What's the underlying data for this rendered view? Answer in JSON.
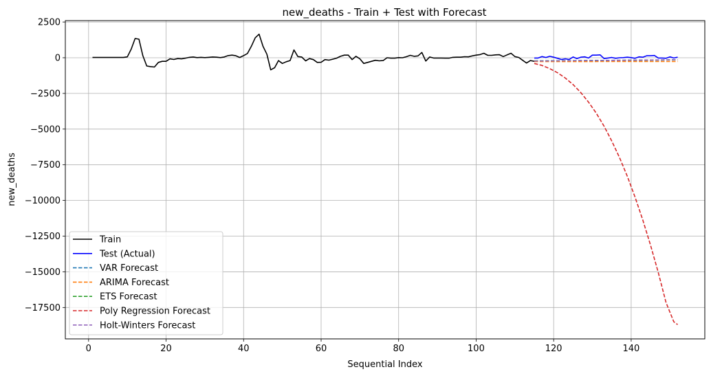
{
  "chart_data": {
    "type": "line",
    "title": "new_deaths - Train + Test with Forecast",
    "xlabel": "Sequential Index",
    "ylabel": "new_deaths",
    "xlim": [
      -6,
      159
    ],
    "ylim": [
      -19700,
      2600
    ],
    "xticks": [
      0,
      20,
      40,
      60,
      80,
      100,
      120,
      140
    ],
    "xtick_labels": [
      "0",
      "20",
      "40",
      "60",
      "80",
      "100",
      "120",
      "140"
    ],
    "yticks": [
      2500,
      0,
      -2500,
      -5000,
      -7500,
      -10000,
      -12500,
      -15000,
      -17500
    ],
    "ytick_labels": [
      "2500",
      "0",
      "−2500",
      "−5000",
      "−7500",
      "−10000",
      "−12500",
      "−15000",
      "−17500"
    ],
    "grid": true,
    "legend_position": "lower-left",
    "series": [
      {
        "name": "Train",
        "color": "#000000",
        "dashed": false,
        "x": [
          1,
          2,
          3,
          4,
          5,
          6,
          7,
          8,
          9,
          10,
          11,
          12,
          13,
          14,
          15,
          16,
          17,
          18,
          19,
          20,
          21,
          22,
          23,
          24,
          25,
          26,
          27,
          28,
          29,
          30,
          31,
          32,
          33,
          34,
          35,
          36,
          37,
          38,
          39,
          40,
          41,
          42,
          43,
          44,
          45,
          46,
          47,
          48,
          49,
          50,
          51,
          52,
          53,
          54,
          55,
          56,
          57,
          58,
          59,
          60,
          61,
          62,
          63,
          64,
          65,
          66,
          67,
          68,
          69,
          70,
          71,
          72,
          73,
          74,
          75,
          76,
          77,
          78,
          79,
          80,
          81,
          82,
          83,
          84,
          85,
          86,
          87,
          88,
          89,
          90,
          91,
          92,
          93,
          94,
          95,
          96,
          97,
          98,
          99,
          100,
          101,
          102,
          103,
          104,
          105,
          106,
          107,
          108,
          109,
          110,
          111,
          112,
          113,
          114
        ],
        "values": [
          20,
          20,
          20,
          20,
          20,
          20,
          20,
          20,
          20,
          60,
          600,
          1350,
          1300,
          150,
          -580,
          -620,
          -650,
          -330,
          -250,
          -250,
          -80,
          -120,
          -60,
          -80,
          -30,
          30,
          50,
          10,
          30,
          10,
          30,
          50,
          40,
          10,
          50,
          150,
          180,
          140,
          20,
          150,
          300,
          800,
          1400,
          1650,
          800,
          250,
          -850,
          -700,
          -200,
          -400,
          -280,
          -200,
          550,
          80,
          50,
          -220,
          -60,
          -130,
          -330,
          -320,
          -130,
          -170,
          -100,
          -30,
          100,
          180,
          180,
          -130,
          100,
          -80,
          -400,
          -330,
          -250,
          -180,
          -220,
          -200,
          0,
          -30,
          -30,
          10,
          0,
          70,
          170,
          100,
          130,
          370,
          -230,
          50,
          -20,
          -20,
          -20,
          -30,
          -30,
          30,
          40,
          40,
          70,
          60,
          130,
          180,
          220,
          310,
          170,
          170,
          200,
          210,
          80,
          200,
          310,
          80,
          20,
          -180,
          -370,
          -200
        ],
        "last_segment_to": [
          115,
          -250
        ]
      },
      {
        "name": "Test (Actual)",
        "color": "#0000ff",
        "dashed": false,
        "x": [
          115,
          116,
          117,
          118,
          119,
          120,
          121,
          122,
          123,
          124,
          125,
          126,
          127,
          128,
          129,
          130,
          131,
          132,
          133,
          134,
          135,
          136,
          137,
          138,
          139,
          140,
          141,
          142,
          143,
          144,
          145,
          146,
          147,
          148,
          149,
          150,
          151,
          152
        ],
        "values": [
          -20,
          -20,
          80,
          20,
          100,
          40,
          -40,
          -120,
          -80,
          -120,
          50,
          -60,
          40,
          60,
          -20,
          180,
          180,
          200,
          -60,
          -20,
          20,
          -40,
          0,
          10,
          40,
          10,
          -40,
          60,
          40,
          140,
          140,
          160,
          -20,
          -20,
          -40,
          60,
          -20,
          40
        ]
      },
      {
        "name": "VAR Forecast",
        "color": "#1f77b4",
        "dashed": true,
        "x": [
          115,
          152
        ],
        "values": [
          -240,
          -150
        ]
      },
      {
        "name": "ARIMA Forecast",
        "color": "#ff7f0e",
        "dashed": true,
        "x": [
          115,
          152
        ],
        "values": [
          -270,
          -260
        ]
      },
      {
        "name": "ETS Forecast",
        "color": "#2ca02c",
        "dashed": true,
        "x": [
          115,
          152
        ],
        "values": [
          -220,
          -150
        ]
      },
      {
        "name": "Poly Regression Forecast",
        "color": "#d62728",
        "dashed": true,
        "x": [
          115,
          117,
          119,
          121,
          123,
          125,
          127,
          129,
          131,
          133,
          135,
          137,
          139,
          141,
          143,
          145,
          147,
          149,
          151,
          152
        ],
        "values": [
          -400,
          -540,
          -760,
          -1050,
          -1420,
          -1880,
          -2440,
          -3110,
          -3890,
          -4800,
          -5840,
          -7000,
          -8310,
          -9760,
          -11370,
          -13140,
          -15060,
          -17150,
          -18500,
          -18700
        ]
      },
      {
        "name": "Holt-Winters Forecast",
        "color": "#9467bd",
        "dashed": true,
        "x": [
          115,
          152
        ],
        "values": [
          -230,
          -140
        ]
      }
    ]
  }
}
